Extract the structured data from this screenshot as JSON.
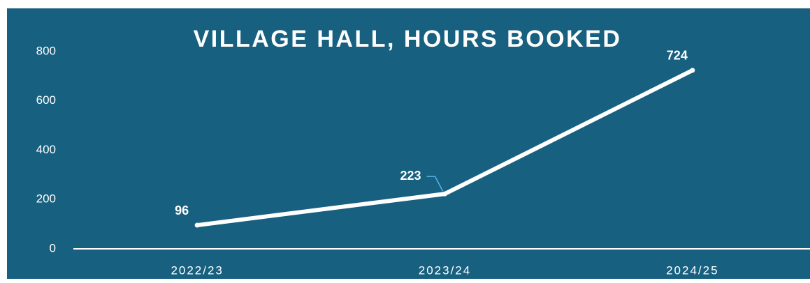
{
  "chart_data": {
    "type": "line",
    "title": "VILLAGE HALL, HOURS BOOKED",
    "categories": [
      "2022/23",
      "2023/24",
      "2024/25"
    ],
    "values": [
      96,
      223,
      724
    ],
    "color": "#ffffff",
    "ylim": [
      0,
      800
    ],
    "yticks": [
      0,
      200,
      400,
      600,
      800
    ],
    "grid": false
  }
}
